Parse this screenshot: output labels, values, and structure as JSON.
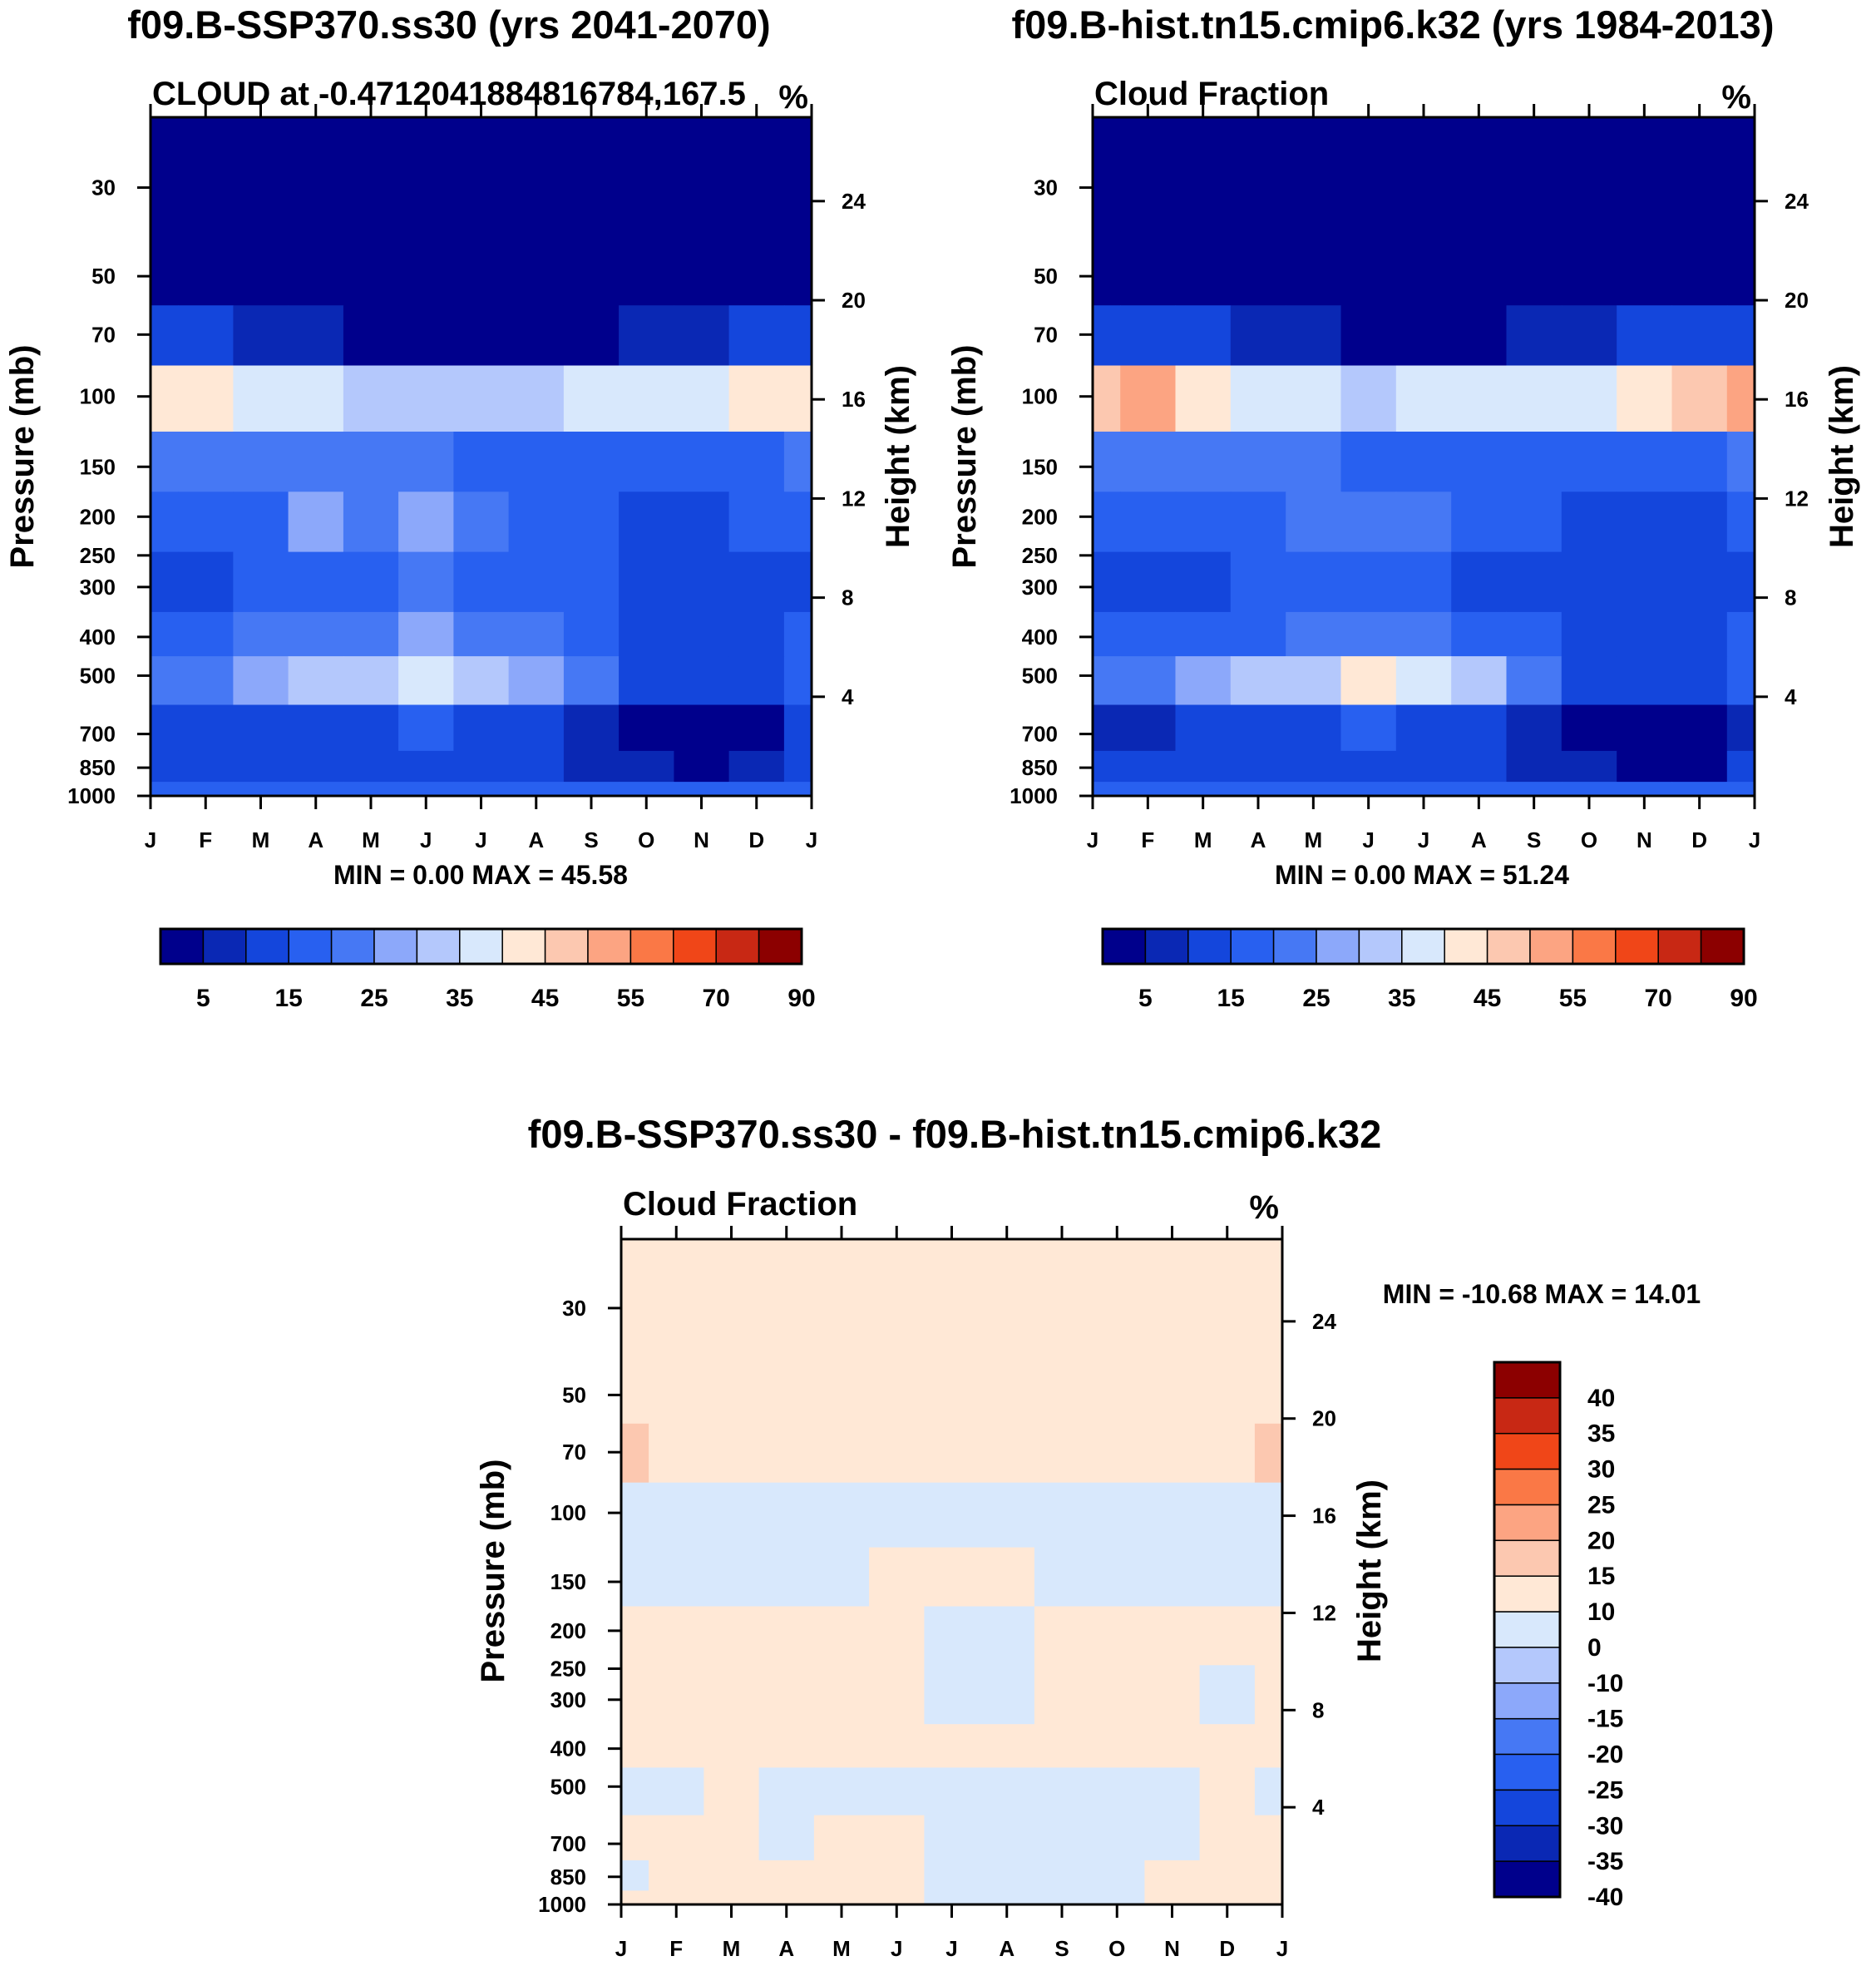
{
  "palette_main": [
    "#00008c",
    "#0a28b4",
    "#1446dc",
    "#2860f0",
    "#4678f4",
    "#8ca8fa",
    "#b4c8fc",
    "#d8e8fc",
    "#ffe8d6",
    "#fcc8b0",
    "#fca482",
    "#fa7846",
    "#f04618",
    "#c82814",
    "#8c0000"
  ],
  "palette_diff": [
    "#00008c",
    "#0a28b4",
    "#1446dc",
    "#2860f0",
    "#4678f4",
    "#8ca8fa",
    "#b4c8fc",
    "#d8e8fc",
    "#ffe8d6",
    "#fcc8b0",
    "#fca482",
    "#fa7846",
    "#f04618",
    "#c82814",
    "#8c0000"
  ],
  "chart_data": [
    {
      "type": "heatmap",
      "title": "f09.B-SSP370.ss30 (yrs 2041-2070)",
      "subtitle_left": "CLOUD at -0.4712041884816784,167.5",
      "subtitle_right": "%",
      "xlabel": "",
      "ylabel": "Pressure (mb)",
      "ylabel_right": "Height (km)",
      "x_ticks": [
        "J",
        "F",
        "M",
        "A",
        "M",
        "J",
        "J",
        "A",
        "S",
        "O",
        "N",
        "D",
        "J"
      ],
      "y_ticks": [
        30,
        50,
        70,
        100,
        150,
        200,
        250,
        300,
        400,
        500,
        700,
        850,
        1000
      ],
      "y_right_ticks": [
        24,
        20,
        16,
        12,
        8,
        4
      ],
      "min_label": "MIN =   0.00 MAX =  45.58",
      "min": 0.0,
      "max": 45.58,
      "colorbar_labels": [
        "5",
        "15",
        "25",
        "35",
        "45",
        "55",
        "70",
        "90"
      ],
      "levels": [
        0,
        5,
        10,
        15,
        20,
        25,
        30,
        35,
        40,
        45,
        50,
        55,
        60,
        70,
        80,
        90
      ],
      "z_pressure_levels": [
        30,
        50,
        70,
        100,
        150,
        200,
        300,
        400,
        500,
        700,
        850,
        1000
      ],
      "z_months": [
        "J",
        "F",
        "M",
        "A",
        "M",
        "J",
        "J",
        "A",
        "S",
        "O",
        "N",
        "D",
        "J"
      ],
      "z": [
        [
          1,
          1,
          1,
          1,
          1,
          1,
          1,
          1,
          1,
          1,
          1,
          1,
          1
        ],
        [
          2,
          1,
          1,
          1,
          1,
          1,
          1,
          1,
          1,
          1,
          1,
          1,
          2
        ],
        [
          12,
          10,
          8,
          5,
          3,
          1,
          1,
          1,
          3,
          5,
          8,
          10,
          12
        ],
        [
          40,
          42,
          38,
          35,
          33,
          30,
          32,
          34,
          36,
          35,
          37,
          40,
          42
        ],
        [
          20,
          20,
          21,
          21,
          20,
          20,
          19,
          18,
          17,
          15,
          16,
          17,
          20
        ],
        [
          17,
          17,
          18,
          25,
          21,
          28,
          20,
          17,
          15,
          14,
          14,
          15,
          17
        ],
        [
          13,
          13,
          15,
          16,
          18,
          20,
          18,
          16,
          15,
          13,
          12,
          12,
          13
        ],
        [
          18,
          18,
          20,
          21,
          23,
          25,
          22,
          20,
          18,
          14,
          13,
          13,
          16
        ],
        [
          22,
          24,
          28,
          30,
          33,
          37,
          33,
          28,
          22,
          14,
          13,
          13,
          18
        ],
        [
          10,
          10,
          11,
          12,
          14,
          16,
          14,
          12,
          8,
          3,
          2,
          3,
          10
        ],
        [
          11,
          11,
          12,
          13,
          14,
          14,
          13,
          12,
          9,
          5,
          3,
          5,
          11
        ],
        [
          16,
          16,
          16,
          16,
          16,
          16,
          16,
          16,
          16,
          16,
          16,
          16,
          16
        ]
      ]
    },
    {
      "type": "heatmap",
      "title": "f09.B-hist.tn15.cmip6.k32 (yrs 1984-2013)",
      "subtitle_left": "Cloud Fraction",
      "subtitle_right": "%",
      "xlabel": "",
      "ylabel": "Pressure (mb)",
      "ylabel_right": "Height (km)",
      "x_ticks": [
        "J",
        "F",
        "M",
        "A",
        "M",
        "J",
        "J",
        "A",
        "S",
        "O",
        "N",
        "D",
        "J"
      ],
      "y_ticks": [
        30,
        50,
        70,
        100,
        150,
        200,
        250,
        300,
        400,
        500,
        700,
        850,
        1000
      ],
      "y_right_ticks": [
        24,
        20,
        16,
        12,
        8,
        4
      ],
      "min_label": "MIN =   0.00 MAX =  51.24",
      "min": 0.0,
      "max": 51.24,
      "colorbar_labels": [
        "5",
        "15",
        "25",
        "35",
        "45",
        "55",
        "70",
        "90"
      ],
      "levels": [
        0,
        5,
        10,
        15,
        20,
        25,
        30,
        35,
        40,
        45,
        50,
        55,
        60,
        70,
        80,
        90
      ],
      "z_pressure_levels": [
        30,
        50,
        70,
        100,
        150,
        200,
        300,
        400,
        500,
        700,
        850,
        1000
      ],
      "z_months": [
        "J",
        "F",
        "M",
        "A",
        "M",
        "J",
        "J",
        "A",
        "S",
        "O",
        "N",
        "D",
        "J"
      ],
      "z": [
        [
          1,
          1,
          1,
          1,
          1,
          1,
          1,
          1,
          1,
          1,
          1,
          1,
          1
        ],
        [
          2,
          1,
          1,
          1,
          1,
          1,
          1,
          1,
          1,
          1,
          1,
          1,
          2
        ],
        [
          14,
          12,
          10,
          7,
          5,
          3,
          3,
          4,
          6,
          8,
          10,
          12,
          14
        ],
        [
          45,
          51,
          43,
          38,
          36,
          34,
          35,
          36,
          37,
          38,
          40,
          45,
          50
        ],
        [
          20,
          20,
          21,
          22,
          20,
          19,
          19,
          18,
          17,
          16,
          16,
          17,
          20
        ],
        [
          16,
          17,
          18,
          18,
          20,
          21,
          24,
          19,
          16,
          13,
          13,
          14,
          16
        ],
        [
          12,
          12,
          14,
          15,
          16,
          17,
          16,
          14,
          13,
          11,
          10,
          11,
          12
        ],
        [
          16,
          17,
          18,
          19,
          20,
          21,
          20,
          18,
          16,
          13,
          10,
          12,
          15
        ],
        [
          20,
          22,
          27,
          30,
          34,
          40,
          36,
          30,
          22,
          14,
          13,
          12,
          18
        ],
        [
          9,
          9,
          10,
          12,
          14,
          16,
          14,
          12,
          8,
          3,
          2,
          2,
          9
        ],
        [
          10,
          10,
          11,
          12,
          13,
          14,
          13,
          11,
          8,
          5,
          3,
          4,
          10
        ],
        [
          15,
          15,
          15,
          15,
          15,
          15,
          15,
          15,
          15,
          15,
          15,
          15,
          15
        ]
      ]
    },
    {
      "type": "heatmap",
      "title": "f09.B-SSP370.ss30 - f09.B-hist.tn15.cmip6.k32",
      "subtitle_left": "Cloud Fraction",
      "subtitle_right": "%",
      "xlabel": "",
      "ylabel": "Pressure (mb)",
      "ylabel_right": "Height (km)",
      "x_ticks": [
        "J",
        "F",
        "M",
        "A",
        "M",
        "J",
        "J",
        "A",
        "S",
        "O",
        "N",
        "D",
        "J"
      ],
      "y_ticks": [
        30,
        50,
        70,
        100,
        150,
        200,
        250,
        300,
        400,
        500,
        700,
        850,
        1000
      ],
      "y_right_ticks": [
        24,
        20,
        16,
        12,
        8,
        4
      ],
      "min_label": "MIN = -10.68 MAX =  14.01",
      "min": -10.68,
      "max": 14.01,
      "colorbar_labels": [
        "40",
        "35",
        "30",
        "25",
        "20",
        "15",
        "10",
        "0",
        "-10",
        "-15",
        "-20",
        "-25",
        "-30",
        "-35",
        "-40"
      ],
      "levels": [
        -100,
        -40,
        -35,
        -30,
        -25,
        -20,
        -15,
        -10,
        0,
        10,
        15,
        20,
        25,
        30,
        35,
        40,
        100
      ],
      "z_pressure_levels": [
        30,
        50,
        70,
        100,
        150,
        200,
        300,
        400,
        500,
        700,
        850,
        1000
      ],
      "z_months": [
        "J",
        "F",
        "M",
        "A",
        "M",
        "J",
        "J",
        "A",
        "S",
        "O",
        "N",
        "D",
        "J"
      ],
      "z": [
        [
          0.5,
          0.5,
          0.5,
          0.5,
          0.5,
          0.5,
          0.5,
          0.5,
          0.5,
          0.5,
          0.5,
          0.5,
          0.5
        ],
        [
          0.5,
          0.5,
          0.5,
          0.5,
          0.5,
          0.5,
          0.5,
          0.5,
          0.5,
          0.5,
          0.5,
          0.5,
          0.5
        ],
        [
          11,
          1,
          1,
          1,
          1,
          1,
          1,
          1,
          1,
          1,
          1,
          1,
          11
        ],
        [
          -2,
          -3,
          -3,
          -4,
          -3,
          -3,
          -3,
          -3,
          -3,
          -3,
          -3,
          -3,
          -2
        ],
        [
          -1,
          -1,
          -1,
          -1,
          -1,
          1,
          1,
          1,
          -1,
          -1,
          -1,
          -1,
          -1
        ],
        [
          1,
          1,
          1,
          1,
          1,
          1,
          -2,
          -2,
          1,
          1,
          1,
          1,
          1
        ],
        [
          1,
          1,
          1,
          1,
          1,
          1,
          -1,
          -1,
          1,
          1,
          1,
          -1,
          1
        ],
        [
          1,
          1,
          1,
          1,
          1,
          1,
          1,
          1,
          1,
          1,
          1,
          1,
          1
        ],
        [
          -1,
          -1,
          1,
          -1,
          -1,
          -1,
          -1,
          -1,
          -1,
          -1,
          -1,
          1,
          -1
        ],
        [
          1,
          1,
          1,
          -1,
          1,
          1,
          -1,
          -1,
          -1,
          -1,
          -1,
          1,
          1
        ],
        [
          -1,
          1,
          1,
          1,
          1,
          1,
          -1,
          -1,
          -1,
          -1,
          1,
          1,
          1
        ],
        [
          1,
          1,
          1,
          1,
          1,
          1,
          -1,
          -1,
          -1,
          -1,
          1,
          1,
          1
        ]
      ]
    }
  ]
}
